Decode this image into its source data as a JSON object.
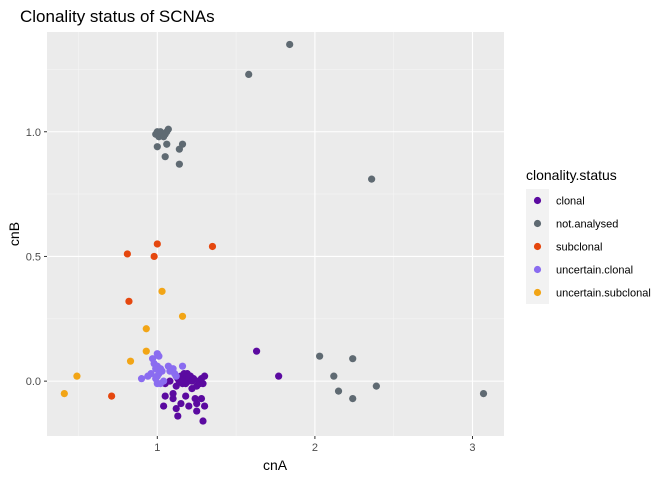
{
  "chart_data": {
    "type": "scatter",
    "title": "Clonality status of SCNAs",
    "xlabel": "cnA",
    "ylabel": "cnB",
    "xlim": [
      0.3,
      3.2
    ],
    "ylim": [
      -0.22,
      1.4
    ],
    "x_ticks": [
      1,
      2,
      3
    ],
    "x_tick_labels": [
      "1",
      "2",
      "3"
    ],
    "y_ticks": [
      0.0,
      0.5,
      1.0
    ],
    "y_tick_labels": [
      "0.0",
      "0.5",
      "1.0"
    ],
    "grid": true,
    "legend": {
      "title": "clonality.status",
      "position": "right"
    },
    "series": [
      {
        "name": "clonal",
        "color": "#5b0aa0",
        "points": [
          [
            1.63,
            0.12
          ],
          [
            1.77,
            0.02
          ],
          [
            1.05,
            -0.01
          ],
          [
            1.08,
            0.0
          ],
          [
            1.1,
            -0.05
          ],
          [
            1.12,
            -0.02
          ],
          [
            1.13,
            0.01
          ],
          [
            1.14,
            0.0
          ],
          [
            1.15,
            0.02
          ],
          [
            1.16,
            -0.01
          ],
          [
            1.17,
            0.03
          ],
          [
            1.18,
            0.01
          ],
          [
            1.19,
            0.03
          ],
          [
            1.2,
            0.0
          ],
          [
            1.21,
            0.02
          ],
          [
            1.22,
            -0.03
          ],
          [
            1.23,
            0.01
          ],
          [
            1.25,
            -0.02
          ],
          [
            1.26,
            0.0
          ],
          [
            1.27,
            -0.01
          ],
          [
            1.28,
            0.01
          ],
          [
            1.29,
            -0.01
          ],
          [
            1.3,
            0.02
          ],
          [
            1.12,
            0.02
          ],
          [
            1.16,
            0.0
          ],
          [
            1.18,
            -0.01
          ],
          [
            1.05,
            -0.06
          ],
          [
            1.1,
            -0.07
          ],
          [
            1.15,
            -0.09
          ],
          [
            1.18,
            -0.06
          ],
          [
            1.2,
            -0.1
          ],
          [
            1.24,
            -0.07
          ],
          [
            1.25,
            -0.09
          ],
          [
            1.28,
            -0.07
          ],
          [
            1.3,
            -0.1
          ],
          [
            1.04,
            -0.1
          ],
          [
            1.12,
            -0.11
          ],
          [
            1.13,
            -0.14
          ],
          [
            1.25,
            -0.12
          ],
          [
            1.29,
            -0.16
          ],
          [
            1.2,
            0.02
          ],
          [
            1.22,
            0.0
          ]
        ]
      },
      {
        "name": "not.analysed",
        "color": "#5f6a72",
        "points": [
          [
            1.84,
            1.35
          ],
          [
            1.58,
            1.23
          ],
          [
            0.99,
            0.99
          ],
          [
            1.0,
            1.0
          ],
          [
            1.01,
            0.98
          ],
          [
            1.02,
            1.0
          ],
          [
            1.03,
            0.99
          ],
          [
            1.05,
            0.99
          ],
          [
            1.06,
            1.0
          ],
          [
            1.07,
            1.01
          ],
          [
            1.04,
            0.98
          ],
          [
            1.0,
            0.94
          ],
          [
            1.06,
            0.95
          ],
          [
            1.16,
            0.95
          ],
          [
            1.14,
            0.93
          ],
          [
            1.05,
            0.9
          ],
          [
            1.14,
            0.87
          ],
          [
            2.36,
            0.81
          ],
          [
            2.03,
            0.1
          ],
          [
            2.24,
            0.09
          ],
          [
            2.12,
            0.02
          ],
          [
            2.39,
            -0.02
          ],
          [
            2.15,
            -0.04
          ],
          [
            2.24,
            -0.07
          ],
          [
            3.07,
            -0.05
          ]
        ]
      },
      {
        "name": "subclonal",
        "color": "#e5470e",
        "points": [
          [
            1.0,
            0.55
          ],
          [
            1.35,
            0.54
          ],
          [
            0.81,
            0.51
          ],
          [
            0.98,
            0.5
          ],
          [
            0.82,
            0.32
          ],
          [
            0.71,
            -0.06
          ]
        ]
      },
      {
        "name": "uncertain.clonal",
        "color": "#8a6cf0",
        "points": [
          [
            0.97,
            0.09
          ],
          [
            0.98,
            0.07
          ],
          [
            1.0,
            0.11
          ],
          [
            1.01,
            0.1
          ],
          [
            0.99,
            0.05
          ],
          [
            1.0,
            0.06
          ],
          [
            1.02,
            0.05
          ],
          [
            1.03,
            0.04
          ],
          [
            1.07,
            0.06
          ],
          [
            1.08,
            0.04
          ],
          [
            1.16,
            0.06
          ],
          [
            1.11,
            0.03
          ],
          [
            1.12,
            0.02
          ],
          [
            1.1,
            0.05
          ],
          [
            0.96,
            0.03
          ],
          [
            0.94,
            0.02
          ],
          [
            0.99,
            0.01
          ],
          [
            1.0,
            -0.01
          ],
          [
            1.02,
            -0.01
          ],
          [
            1.01,
            0.03
          ],
          [
            0.9,
            0.01
          ],
          [
            1.0,
            0.02
          ],
          [
            1.04,
            0.0
          ]
        ]
      },
      {
        "name": "uncertain.subclonal",
        "color": "#f2a516",
        "points": [
          [
            1.03,
            0.36
          ],
          [
            1.16,
            0.26
          ],
          [
            0.93,
            0.21
          ],
          [
            0.93,
            0.12
          ],
          [
            0.83,
            0.08
          ],
          [
            0.49,
            0.02
          ],
          [
            0.41,
            -0.05
          ]
        ]
      }
    ]
  }
}
